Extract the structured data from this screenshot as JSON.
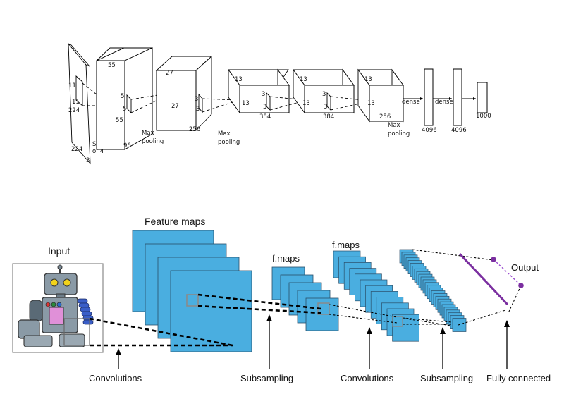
{
  "alexnet": {
    "input": {
      "dim_h": "224",
      "dim_w": "224",
      "depth": "3",
      "kernel_a": "11",
      "kernel_b": "11",
      "stride": "Stride",
      "stride2": "of 4"
    },
    "conv1": {
      "top": "55",
      "side": "55",
      "depth": "96",
      "kernel_a": "5",
      "kernel_b": "5"
    },
    "pool1": {
      "label1": "Max",
      "label2": "pooling"
    },
    "conv2": {
      "top": "27",
      "side": "27",
      "depth": "256",
      "kernel_a": "3",
      "kernel_b": "3"
    },
    "pool2": {
      "label1": "Max",
      "label2": "pooling"
    },
    "conv3": {
      "top": "13",
      "side": "13",
      "depth": "384",
      "kernel_a": "3",
      "kernel_b": "3"
    },
    "conv4": {
      "top": "13",
      "side": "13",
      "depth": "384",
      "kernel_a": "3",
      "kernel_b": "3"
    },
    "conv5": {
      "top": "13",
      "side": "13",
      "depth": "256"
    },
    "pool3": {
      "label1": "Max",
      "label2": "pooling"
    },
    "dense1": {
      "label": "dense",
      "size": "4096"
    },
    "dense2": {
      "label": "dense",
      "size": "4096"
    },
    "output": {
      "size": "1000"
    }
  },
  "lenet": {
    "input_label": "Input",
    "feature_maps_label": "Feature maps",
    "fmaps1_label": "f.maps",
    "fmaps2_label": "f.maps",
    "output_label": "Output",
    "captions": {
      "convolutions1": "Convolutions",
      "subsampling1": "Subsampling",
      "convolutions2": "Convolutions",
      "subsampling2": "Subsampling",
      "fully_connected": "Fully connected"
    },
    "colors": {
      "map_fill": "#4aaee0",
      "map_stroke": "#2a4f6a",
      "output_purple": "#7b2fa0"
    }
  }
}
